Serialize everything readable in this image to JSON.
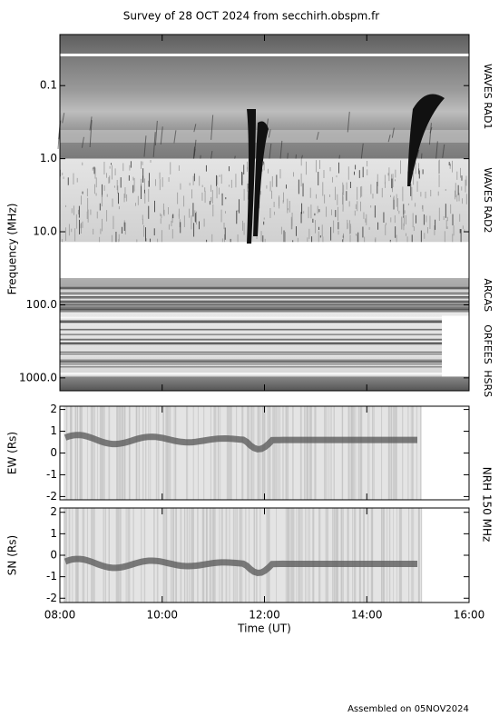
{
  "chart_data": [
    {
      "type": "spectrogram",
      "title": "Survey of 28 OCT 2024 from secchirh.obspm.fr",
      "ylabel": "Frequency (MHz)",
      "log_y": true,
      "y_inverted": true,
      "ylim": [
        0.02,
        1500
      ],
      "yticks": [
        0.1,
        {
          "value": 1,
          "label": "1.0"
        },
        {
          "value": 10,
          "label": "10.0"
        },
        {
          "value": 100,
          "label": "100.0"
        },
        {
          "value": 1000,
          "label": "1000.0"
        }
      ],
      "bands": [
        {
          "name": "WAVES RAD1",
          "ylim": [
            0.02,
            1
          ]
        },
        {
          "name": "WAVES RAD2",
          "ylim": [
            1,
            13.8
          ]
        },
        {
          "name": "ARCAS",
          "ylim": [
            43,
            126
          ]
        },
        {
          "name": "ORFEES",
          "ylim": [
            126,
            960
          ]
        },
        {
          "name": "HSRS",
          "ylim": [
            960,
            1500
          ]
        }
      ]
    },
    {
      "type": "image",
      "ylabel": "EW (Rs)",
      "ylim": [
        -2.15,
        2.15
      ],
      "yticks": [
        -2,
        -1,
        0,
        1,
        2
      ]
    },
    {
      "type": "image",
      "ylabel": "SN (Rs)",
      "ylim": [
        -2.2,
        2.2
      ],
      "yticks": [
        -2,
        -1,
        0,
        1,
        2
      ],
      "xlabel": "Time (UT)",
      "xlim": [
        8,
        16
      ],
      "xticks": [
        {
          "value": 8,
          "label": "08:00"
        },
        {
          "value": 10,
          "label": "10:00"
        },
        {
          "value": 12,
          "label": "12:00"
        },
        {
          "value": 14,
          "label": "14:00"
        },
        {
          "value": 16,
          "label": "16:00"
        }
      ]
    }
  ],
  "side_label": "NRH 150 MHz",
  "footer": "Assembled on 05NOV2024"
}
